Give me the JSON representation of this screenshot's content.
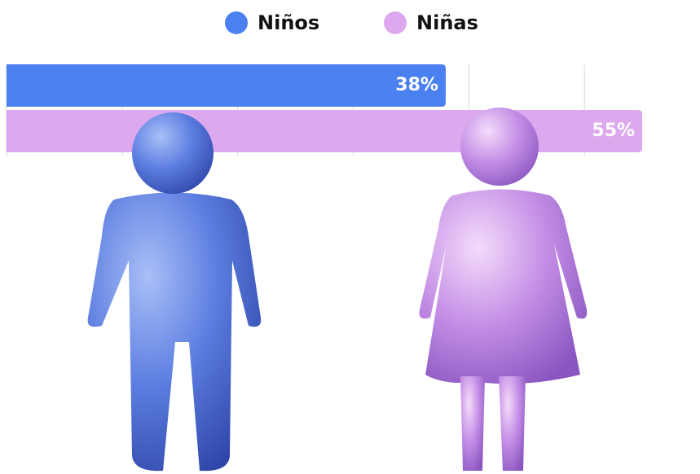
{
  "chart_data": {
    "type": "bar",
    "orientation": "horizontal",
    "categories": [
      null
    ],
    "series": [
      {
        "name": "Niños",
        "color": "#4a80f0",
        "values": [
          38
        ],
        "value_labels": [
          "38%"
        ]
      },
      {
        "name": "Niñas",
        "color": "#dda8ee",
        "values": [
          55
        ],
        "value_labels": [
          "55%"
        ]
      }
    ],
    "xlim": [
      0,
      60
    ],
    "xticks": [
      0,
      10,
      20,
      30,
      40,
      50
    ],
    "grid": true,
    "legend": "top"
  }
}
